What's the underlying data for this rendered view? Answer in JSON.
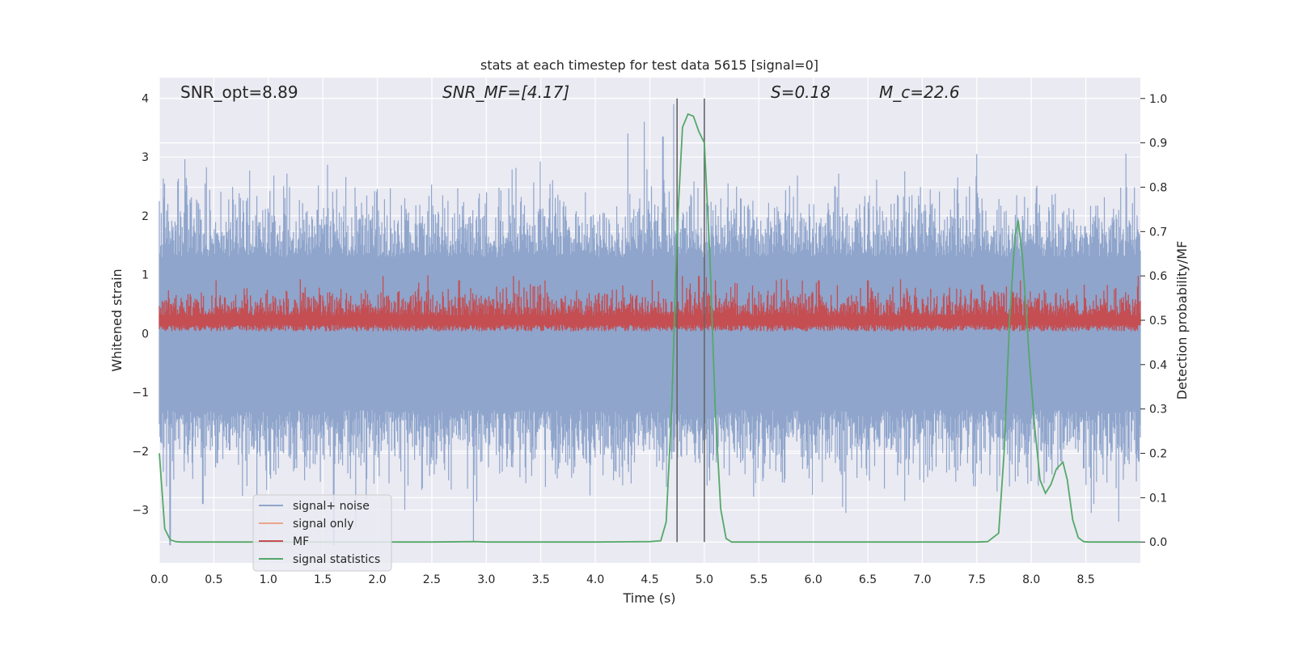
{
  "chart_data": {
    "type": "line",
    "title": "stats at each timestep for test data 5615 [signal=0]",
    "xlabel": "Time (s)",
    "ylabel_left": "Whitened strain",
    "ylabel_right": "Detection probability/MF",
    "xlim": [
      0,
      9.0
    ],
    "ylim_left": [
      -3.9,
      4.35
    ],
    "ylim_right": [
      -0.047,
      1.047
    ],
    "x_ticks": [
      "0.0",
      "0.5",
      "1.0",
      "1.5",
      "2.0",
      "2.5",
      "3.0",
      "3.5",
      "4.0",
      "4.5",
      "5.0",
      "5.5",
      "6.0",
      "6.5",
      "7.0",
      "7.5",
      "8.0",
      "8.5"
    ],
    "y_ticks_left": [
      "−3",
      "−2",
      "−1",
      "0",
      "1",
      "2",
      "3",
      "4"
    ],
    "y_ticks_right": [
      "0.0",
      "0.1",
      "0.2",
      "0.3",
      "0.4",
      "0.5",
      "0.6",
      "0.7",
      "0.8",
      "0.9",
      "1.0"
    ],
    "annotations": [
      {
        "text": "SNR_opt=8.89",
        "x": 0.2,
        "y": 4.05
      },
      {
        "text": "SNR_MF=[4.17]",
        "x": 2.6,
        "y": 4.05
      },
      {
        "text": "S=0.18",
        "x": 5.6,
        "y": 4.05
      },
      {
        "text": "M_c=22.6",
        "x": 6.6,
        "y": 4.05
      }
    ],
    "vertical_lines": [
      4.75,
      5.0
    ],
    "legend": {
      "location": "lower-left",
      "entries": [
        "signal+ noise",
        "signal only",
        "MF",
        "signal statistics"
      ]
    },
    "colors": {
      "background": "#eaeaf2",
      "grid": "#ffffff",
      "signal_noise": "#8fa5cc",
      "signal_only": "#e8a68a",
      "mf": "#c44e52",
      "signal_statistics": "#55a868",
      "vline": "#666666"
    },
    "series": [
      {
        "name": "signal+ noise",
        "axis": "left",
        "style": "noise band",
        "envelope_core": [
          -1.3,
          1.3
        ],
        "peaks_hi": [
          [
            0.05,
            2.55
          ],
          [
            1.45,
            2.1
          ],
          [
            2.25,
            2.3
          ],
          [
            2.6,
            2.35
          ],
          [
            4.3,
            3.4
          ],
          [
            4.45,
            3.6
          ],
          [
            4.62,
            3.35
          ],
          [
            4.72,
            3.9
          ],
          [
            5.33,
            2.3
          ],
          [
            6.2,
            2.5
          ],
          [
            7.5,
            3.05
          ],
          [
            8.8,
            2.1
          ]
        ],
        "peaks_lo": [
          [
            0.1,
            -3.6
          ],
          [
            0.4,
            -2.9
          ],
          [
            1.6,
            -3.6
          ],
          [
            1.8,
            -3.3
          ],
          [
            2.25,
            -3.0
          ],
          [
            2.88,
            -3.55
          ],
          [
            5.05,
            -2.5
          ],
          [
            6.3,
            -3.05
          ],
          [
            7.8,
            -2.6
          ],
          [
            8.55,
            -3.05
          ],
          [
            8.8,
            -3.2
          ]
        ]
      },
      {
        "name": "signal only",
        "axis": "left",
        "values": []
      },
      {
        "name": "MF",
        "axis": "right",
        "band": [
          0.475,
          0.595
        ],
        "peak_times": [
          0.52,
          2.05,
          2.75,
          3.25,
          3.3,
          4.8,
          4.95,
          5.1,
          6.05,
          6.5,
          7.55,
          7.9,
          8.98
        ],
        "peak_values": [
          0.59,
          0.6,
          0.59,
          0.6,
          0.59,
          0.6,
          0.6,
          0.59,
          0.59,
          0.59,
          0.58,
          0.59,
          0.6
        ]
      },
      {
        "name": "signal statistics",
        "axis": "right",
        "x": [
          0.0,
          0.05,
          0.1,
          0.15,
          0.2,
          0.5,
          1.0,
          1.5,
          2.0,
          2.5,
          2.9,
          3.0,
          3.5,
          4.0,
          4.5,
          4.6,
          4.65,
          4.7,
          4.75,
          4.8,
          4.85,
          4.9,
          4.95,
          5.0,
          5.05,
          5.1,
          5.15,
          5.2,
          5.25,
          5.5,
          6.0,
          6.5,
          7.0,
          7.5,
          7.6,
          7.7,
          7.75,
          7.8,
          7.85,
          7.88,
          7.92,
          7.98,
          8.03,
          8.08,
          8.13,
          8.18,
          8.23,
          8.29,
          8.33,
          8.38,
          8.43,
          8.48,
          8.53,
          8.6,
          9.0
        ],
        "values": [
          0.2,
          0.03,
          0.005,
          0.001,
          0.0,
          0.0,
          0.0,
          0.0,
          0.0,
          0.0,
          0.001,
          0.0,
          0.0,
          0.0,
          0.001,
          0.003,
          0.045,
          0.3,
          0.7,
          0.935,
          0.965,
          0.96,
          0.925,
          0.9,
          0.65,
          0.3,
          0.075,
          0.008,
          0.0,
          0.0,
          0.0,
          0.0,
          0.0,
          0.0,
          0.001,
          0.02,
          0.2,
          0.5,
          0.69,
          0.725,
          0.64,
          0.42,
          0.26,
          0.14,
          0.11,
          0.13,
          0.165,
          0.18,
          0.14,
          0.05,
          0.01,
          0.001,
          0.0,
          0.0,
          0.0
        ]
      }
    ]
  }
}
